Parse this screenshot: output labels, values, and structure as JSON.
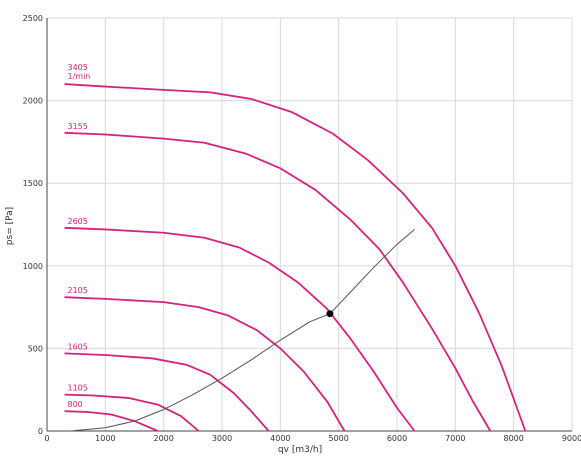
{
  "chart_data": {
    "type": "line",
    "xlabel": "qv [m3/h]",
    "ylabel": "ps= [Pa]",
    "xlim": [
      0,
      9000
    ],
    "ylim": [
      0,
      2500
    ],
    "x_ticks": [
      "0",
      "1000",
      "2000",
      "3000",
      "4000",
      "5000",
      "6000",
      "7000",
      "8000",
      "9000"
    ],
    "y_ticks": [
      "0",
      "500",
      "1000",
      "1500",
      "2000",
      "2500"
    ],
    "grid": true,
    "colors": {
      "curve": "#d4237f",
      "system": "#555555",
      "grid": "#d8d8d8",
      "axis": "#444444"
    },
    "series": [
      {
        "name": "3405",
        "name_line2": "1/min",
        "x": [
          300,
          1000,
          2000,
          2800,
          3500,
          4200,
          4900,
          5500,
          6100,
          6600,
          7000,
          7400,
          7800,
          8200
        ],
        "y": [
          2100,
          2085,
          2065,
          2050,
          2010,
          1930,
          1800,
          1640,
          1440,
          1230,
          1000,
          720,
          390,
          0
        ]
      },
      {
        "name": "3155",
        "x": [
          300,
          1000,
          2000,
          2700,
          3400,
          4000,
          4600,
          5200,
          5700,
          6100,
          6600,
          7000,
          7300,
          7600
        ],
        "y": [
          1805,
          1795,
          1770,
          1745,
          1680,
          1590,
          1460,
          1280,
          1100,
          900,
          620,
          380,
          180,
          0
        ]
      },
      {
        "name": "2605",
        "x": [
          300,
          1000,
          2000,
          2700,
          3300,
          3800,
          4300,
          4800,
          5200,
          5600,
          6000,
          6300
        ],
        "y": [
          1230,
          1220,
          1200,
          1170,
          1110,
          1020,
          900,
          740,
          560,
          360,
          140,
          0
        ]
      },
      {
        "name": "2105",
        "x": [
          300,
          1000,
          2000,
          2600,
          3100,
          3600,
          4000,
          4400,
          4800,
          5100
        ],
        "y": [
          810,
          800,
          780,
          750,
          700,
          610,
          500,
          360,
          180,
          0
        ]
      },
      {
        "name": "1605",
        "x": [
          300,
          1000,
          1800,
          2400,
          2800,
          3200,
          3500,
          3800
        ],
        "y": [
          470,
          460,
          440,
          400,
          340,
          230,
          120,
          0
        ]
      },
      {
        "name": "1105",
        "x": [
          300,
          800,
          1400,
          1900,
          2300,
          2600
        ],
        "y": [
          220,
          215,
          200,
          160,
          90,
          0
        ]
      },
      {
        "name": "800",
        "x": [
          300,
          700,
          1100,
          1500,
          1900
        ],
        "y": [
          120,
          115,
          100,
          60,
          0
        ]
      }
    ],
    "system_curve": {
      "x": [
        400,
        1000,
        1500,
        2000,
        2500,
        3000,
        3500,
        4000,
        4500,
        4850,
        5200,
        5600,
        6000,
        6300
      ],
      "y": [
        0,
        20,
        60,
        130,
        220,
        320,
        430,
        550,
        660,
        710,
        840,
        990,
        1130,
        1220
      ]
    },
    "operating_point": {
      "x": 4850,
      "y": 710
    }
  }
}
